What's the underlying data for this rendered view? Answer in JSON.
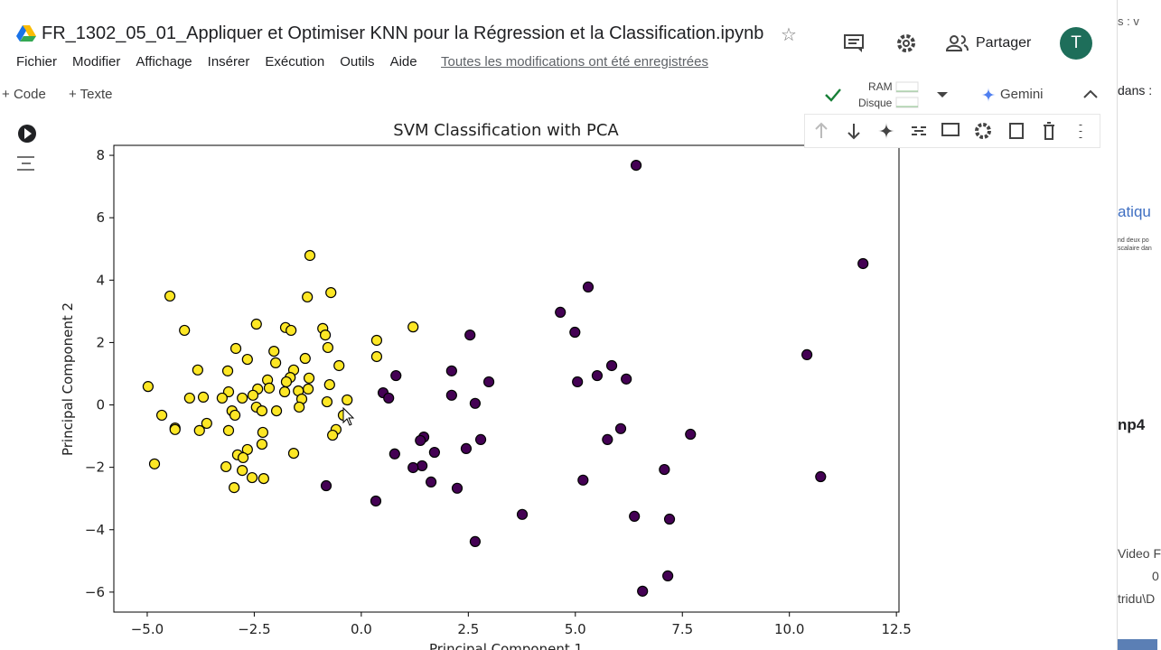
{
  "header": {
    "title": "FR_1302_05_01_Appliquer et Optimiser KNN pour la Régression et la Classification.ipynb",
    "menu": [
      "Fichier",
      "Modifier",
      "Affichage",
      "Insérer",
      "Exécution",
      "Outils",
      "Aide"
    ],
    "save_status": "Toutes les modifications ont été enregistrées",
    "share": "Partager",
    "avatar": "T"
  },
  "toolbar": {
    "add_code": "Code",
    "add_text": "Texte",
    "ram": "RAM",
    "disk": "Disque",
    "gemini": "Gemini"
  },
  "side_panel": [
    "s : v",
    "dans :",
    "atiqu",
    "nd deux po",
    "scalaire dan",
    "np4",
    "Video F",
    "0",
    "tridu\\D"
  ],
  "chart_data": {
    "type": "scatter",
    "title": "SVM Classification with PCA",
    "x_label": "Principal Component 1",
    "y_label": "Principal Component 2",
    "xlim": [
      -5.78,
      12.56
    ],
    "ylim": [
      -6.64,
      8.32
    ],
    "xticks": [
      {
        "value": -5,
        "label": "−5.0"
      },
      {
        "value": -2.5,
        "label": "−2.5"
      },
      {
        "value": 0,
        "label": "0.0"
      },
      {
        "value": 2.5,
        "label": "2.5"
      },
      {
        "value": 5,
        "label": "5.0"
      },
      {
        "value": 7.5,
        "label": "7.5"
      },
      {
        "value": 10,
        "label": "10.0"
      },
      {
        "value": 12.5,
        "label": "12.5"
      }
    ],
    "yticks": [
      {
        "value": -6,
        "label": "−6"
      },
      {
        "value": -4,
        "label": "−4"
      },
      {
        "value": -2,
        "label": "−2"
      },
      0,
      2,
      4,
      6,
      8
    ],
    "grid": false,
    "edge_color": "#000000",
    "series": [
      {
        "color": "#fde725",
        "x": [
          -1.2,
          -4.47,
          -0.71,
          -1.26,
          -4.13,
          -2.45,
          -1.77,
          -1.64,
          -0.9,
          -0.84,
          1.21,
          0.36,
          -2.93,
          -0.78,
          -2.04,
          -2.66,
          0.36,
          -1.31,
          -2.0,
          -0.52,
          -3.82,
          -3.12,
          -1.58,
          -1.66,
          -1.22,
          -2.19,
          -1.75,
          -0.74,
          -4.98,
          -2.15,
          -1.24,
          -2.42,
          -3.1,
          -1.47,
          -1.79,
          -3.69,
          -4.01,
          -2.78,
          -2.53,
          -3.25,
          -1.39,
          -0.33,
          -0.8,
          -2.45,
          -1.45,
          -2.32,
          -3.02,
          -1.98,
          -2.95,
          -4.66,
          -0.42,
          -3.61,
          -4.35,
          -4.35,
          -0.59,
          -3.78,
          -3.1,
          -2.3,
          -0.67,
          -2.32,
          -2.66,
          -1.58,
          -2.89,
          -2.76,
          -4.83,
          -3.16,
          -2.78,
          -2.55,
          -2.28,
          -2.97
        ],
        "values": [
          4.79,
          3.49,
          3.6,
          3.46,
          2.39,
          2.59,
          2.48,
          2.39,
          2.45,
          2.24,
          2.5,
          2.07,
          1.81,
          1.84,
          1.72,
          1.46,
          1.55,
          1.49,
          1.35,
          1.26,
          1.12,
          1.09,
          1.12,
          0.88,
          0.86,
          0.8,
          0.74,
          0.65,
          0.59,
          0.54,
          0.51,
          0.51,
          0.42,
          0.45,
          0.42,
          0.25,
          0.22,
          0.22,
          0.31,
          0.22,
          0.19,
          0.16,
          0.1,
          -0.07,
          -0.07,
          -0.19,
          -0.19,
          -0.19,
          -0.33,
          -0.33,
          -0.33,
          -0.59,
          -0.74,
          -0.79,
          -0.79,
          -0.82,
          -0.82,
          -0.88,
          -0.97,
          -1.26,
          -1.43,
          -1.55,
          -1.6,
          -1.69,
          -1.89,
          -1.98,
          -2.1,
          -2.33,
          -2.36,
          -2.65
        ]
      },
      {
        "color": "#440154",
        "x": [
          6.42,
          11.72,
          5.3,
          4.65,
          4.99,
          2.54,
          10.41,
          5.85,
          2.11,
          5.51,
          0.81,
          6.19,
          5.05,
          2.98,
          0.51,
          0.64,
          2.11,
          2.66,
          6.06,
          7.69,
          5.75,
          1.46,
          1.38,
          2.79,
          2.45,
          1.71,
          0.78,
          1.42,
          1.21,
          7.08,
          1.63,
          5.18,
          10.73,
          2.24,
          -0.82,
          0.34,
          3.76,
          6.38,
          7.2,
          2.66,
          7.16,
          6.57
        ],
        "values": [
          7.68,
          4.53,
          3.78,
          2.97,
          2.33,
          2.24,
          1.61,
          1.26,
          1.09,
          0.94,
          0.94,
          0.83,
          0.74,
          0.74,
          0.39,
          0.22,
          0.31,
          0.05,
          -0.76,
          -0.94,
          -1.11,
          -1.03,
          -1.14,
          -1.11,
          -1.4,
          -1.52,
          -1.57,
          -1.95,
          -2.01,
          -2.07,
          -2.47,
          -2.41,
          -2.3,
          -2.67,
          -2.59,
          -3.08,
          -3.51,
          -3.57,
          -3.66,
          -4.38,
          -5.48,
          -5.97
        ]
      }
    ]
  }
}
